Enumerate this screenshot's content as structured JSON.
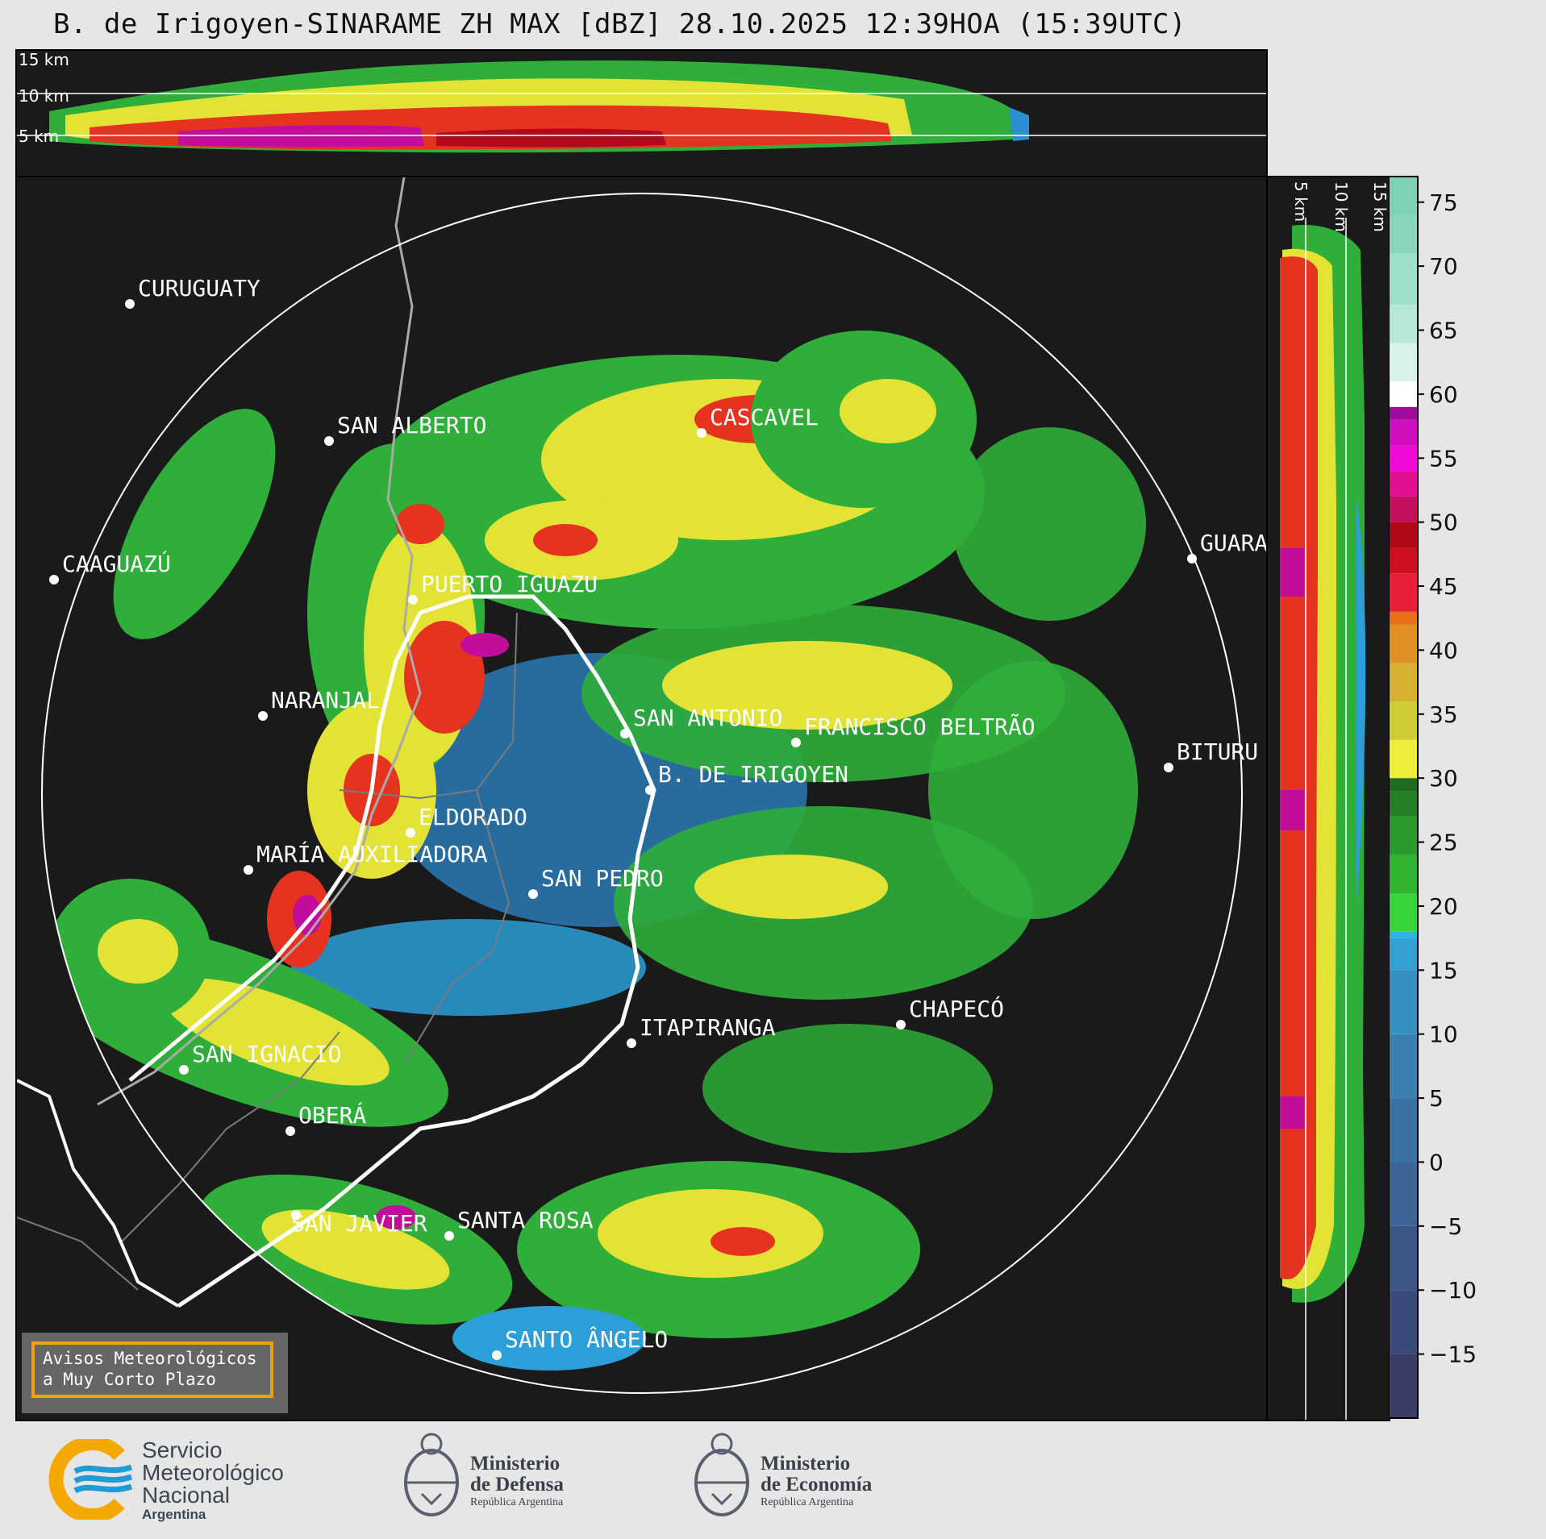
{
  "title": "B. de Irigoyen-SINARAME ZH MAX [dBZ] 28.10.2025 12:39HOA (15:39UTC)",
  "top_section": {
    "altitude_labels": [
      "15 km",
      "10 km",
      "5 km"
    ]
  },
  "side_section": {
    "altitude_labels": [
      "5 km",
      "10 km",
      "15 km"
    ]
  },
  "map": {
    "cities": [
      {
        "name": "CURUGUATY"
      },
      {
        "name": "SAN ALBERTO"
      },
      {
        "name": "CASCAVEL"
      },
      {
        "name": "CAAGUAZÚ"
      },
      {
        "name": "GUARA"
      },
      {
        "name": "PUERTO IGUAZU"
      },
      {
        "name": "NARANJAL"
      },
      {
        "name": "SAN ANTONIO"
      },
      {
        "name": "FRANCISCO BELTRÃO"
      },
      {
        "name": "BITURU"
      },
      {
        "name": "B. DE IRIGOYEN"
      },
      {
        "name": "ELDORADO"
      },
      {
        "name": "MARÍA AUXILIADORA"
      },
      {
        "name": "SAN PEDRO"
      },
      {
        "name": "CHAPECÓ"
      },
      {
        "name": "ITAPIRANGA"
      },
      {
        "name": "SAN IGNACIO"
      },
      {
        "name": "OBERÁ"
      },
      {
        "name": "SAN JAVIER"
      },
      {
        "name": "SANTA ROSA"
      },
      {
        "name": "SANTO ÂNGELO"
      }
    ]
  },
  "alert_button": {
    "line1": "Avisos Meteorológicos",
    "line2": "a Muy Corto Plazo"
  },
  "colorbar": {
    "ticks": [
      "75",
      "70",
      "65",
      "60",
      "55",
      "50",
      "45",
      "40",
      "35",
      "30",
      "25",
      "20",
      "15",
      "10",
      "5",
      "0",
      "−5",
      "−10",
      "−15"
    ],
    "range": [
      -20,
      77
    ]
  },
  "logos": {
    "smn": {
      "line1": "Servicio",
      "line2": "Meteorológico",
      "line3": "Nacional",
      "line4": "Argentina"
    },
    "defensa": {
      "line1": "Ministerio",
      "line2": "de Defensa",
      "line3": "República Argentina"
    },
    "economia": {
      "line1": "Ministerio",
      "line2": "de Economía",
      "line3": "República Argentina"
    }
  },
  "colors": {
    "background": "#1a1a1a",
    "page": "#e6e6e6",
    "alert_border": "#f0a010",
    "smn_blue": "#1f9bd7",
    "smn_orange": "#f5a800"
  }
}
